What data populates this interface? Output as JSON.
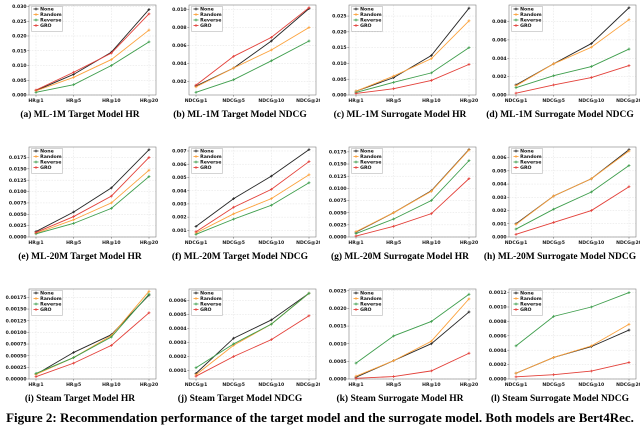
{
  "figure": {
    "caption": "Figure 2: Recommendation performance of the target model and the surrogate model. Both models are Bert4Rec."
  },
  "legend": [
    "None",
    "Random",
    "Reverse",
    "GRO"
  ],
  "colors": {
    "None": "#262626",
    "Random": "#fca23c",
    "Reverse": "#3f9e4d",
    "GRO": "#e3413a"
  },
  "chart_data": [
    {
      "type": "line",
      "title": "(a) ML-1M Target Model HR",
      "categories": [
        "HR@1",
        "HR@5",
        "HR@10",
        "HR@20"
      ],
      "ylim": [
        0,
        0.0305
      ],
      "ydecimals": 3,
      "yticks": [
        0.0,
        0.005,
        0.01,
        0.015,
        0.02,
        0.025,
        0.03
      ],
      "series": [
        {
          "name": "None",
          "values": [
            0.0015,
            0.007,
            0.0145,
            0.029
          ]
        },
        {
          "name": "Random",
          "values": [
            0.0014,
            0.006,
            0.012,
            0.022
          ]
        },
        {
          "name": "Reverse",
          "values": [
            0.0009,
            0.0035,
            0.01,
            0.018
          ]
        },
        {
          "name": "GRO",
          "values": [
            0.0017,
            0.0077,
            0.0142,
            0.0275
          ]
        }
      ]
    },
    {
      "type": "line",
      "title": "(b) ML-1M Target Model NDCG",
      "categories": [
        "NDCG@1",
        "NDCG@5",
        "NDCG@10",
        "NDCG@20"
      ],
      "ylim": [
        0.0005,
        0.0105
      ],
      "ydecimals": 3,
      "yticks": [
        0.002,
        0.004,
        0.006,
        0.008,
        0.01
      ],
      "series": [
        {
          "name": "None",
          "values": [
            0.0015,
            0.0035,
            0.0065,
            0.0101
          ]
        },
        {
          "name": "Random",
          "values": [
            0.0014,
            0.0035,
            0.0055,
            0.008
          ]
        },
        {
          "name": "Reverse",
          "values": [
            0.0008,
            0.0022,
            0.0043,
            0.0065
          ]
        },
        {
          "name": "GRO",
          "values": [
            0.0016,
            0.0048,
            0.0069,
            0.0102
          ]
        }
      ]
    },
    {
      "type": "line",
      "title": "(c) ML-1M Surrogate Model HR",
      "categories": [
        "HR@1",
        "HR@5",
        "HR@10",
        "HR@20"
      ],
      "ylim": [
        0,
        0.0285
      ],
      "ydecimals": 3,
      "yticks": [
        0.0,
        0.005,
        0.01,
        0.015,
        0.02,
        0.025
      ],
      "series": [
        {
          "name": "None",
          "values": [
            0.0012,
            0.0055,
            0.0125,
            0.0275
          ]
        },
        {
          "name": "Random",
          "values": [
            0.0012,
            0.006,
            0.0115,
            0.0235
          ]
        },
        {
          "name": "Reverse",
          "values": [
            0.0008,
            0.004,
            0.007,
            0.015
          ]
        },
        {
          "name": "GRO",
          "values": [
            0.0005,
            0.002,
            0.0046,
            0.0097
          ]
        }
      ]
    },
    {
      "type": "line",
      "title": "(d) ML-1M Surrogate Model NDCG",
      "categories": [
        "NDCG@1",
        "NDCG@5",
        "NDCG@10",
        "NDCG@20"
      ],
      "ylim": [
        0,
        0.0098
      ],
      "ydecimals": 3,
      "yticks": [
        0.0,
        0.002,
        0.004,
        0.006,
        0.008
      ],
      "series": [
        {
          "name": "None",
          "values": [
            0.0011,
            0.0034,
            0.0056,
            0.0095
          ]
        },
        {
          "name": "Random",
          "values": [
            0.001,
            0.0034,
            0.0052,
            0.0082
          ]
        },
        {
          "name": "Reverse",
          "values": [
            0.0008,
            0.0021,
            0.0031,
            0.005
          ]
        },
        {
          "name": "GRO",
          "values": [
            0.0002,
            0.0011,
            0.0019,
            0.0032
          ]
        }
      ]
    },
    {
      "type": "line",
      "title": "(e) ML-20M Target Model HR",
      "categories": [
        "HR@1",
        "HR@5",
        "HR@10",
        "HR@20"
      ],
      "ylim": [
        0,
        0.0198
      ],
      "ydecimals": 4,
      "yticks": [
        0.0,
        0.0025,
        0.005,
        0.0075,
        0.01,
        0.0125,
        0.015,
        0.0175,
        0.02
      ],
      "series": [
        {
          "name": "None",
          "values": [
            0.0012,
            0.0055,
            0.0108,
            0.0192
          ]
        },
        {
          "name": "Random",
          "values": [
            0.0008,
            0.0038,
            0.0075,
            0.0147
          ]
        },
        {
          "name": "Reverse",
          "values": [
            0.0007,
            0.003,
            0.0063,
            0.0133
          ]
        },
        {
          "name": "GRO",
          "values": [
            0.001,
            0.0045,
            0.009,
            0.0175
          ]
        }
      ]
    },
    {
      "type": "line",
      "title": "(f) ML-20M Target Model NDCG",
      "categories": [
        "NDCG@1",
        "NDCG@5",
        "NDCG@10",
        "NDCG@20"
      ],
      "ylim": [
        0.0005,
        0.0073
      ],
      "ydecimals": 3,
      "yticks": [
        0.001,
        0.002,
        0.003,
        0.004,
        0.005,
        0.006,
        0.007
      ],
      "series": [
        {
          "name": "None",
          "values": [
            0.0013,
            0.0034,
            0.0051,
            0.0071
          ]
        },
        {
          "name": "Random",
          "values": [
            0.0008,
            0.00225,
            0.0034,
            0.0052
          ]
        },
        {
          "name": "Reverse",
          "values": [
            0.0007,
            0.00185,
            0.0029,
            0.0046
          ]
        },
        {
          "name": "GRO",
          "values": [
            0.0009,
            0.00275,
            0.0041,
            0.0062
          ]
        }
      ]
    },
    {
      "type": "line",
      "title": "(g) ML-20M Surrogate Model HR",
      "categories": [
        "HR@1",
        "HR@5",
        "HR@10",
        "HR@20"
      ],
      "ylim": [
        0,
        0.0185
      ],
      "ydecimals": 4,
      "yticks": [
        0.0,
        0.0025,
        0.005,
        0.0075,
        0.01,
        0.0125,
        0.015,
        0.0175
      ],
      "series": [
        {
          "name": "None",
          "values": [
            0.001,
            0.005,
            0.0095,
            0.018
          ]
        },
        {
          "name": "Random",
          "values": [
            0.0011,
            0.005,
            0.0094,
            0.0179
          ]
        },
        {
          "name": "Reverse",
          "values": [
            0.0007,
            0.0037,
            0.0075,
            0.0157
          ]
        },
        {
          "name": "GRO",
          "values": [
            0.0002,
            0.0022,
            0.0048,
            0.012
          ]
        }
      ]
    },
    {
      "type": "line",
      "title": "(h) ML-20M Surrogate Model NDCG",
      "categories": [
        "NDCG@1",
        "NDCG@5",
        "NDCG@10",
        "NDCG@20"
      ],
      "ylim": [
        0,
        0.0068
      ],
      "ydecimals": 3,
      "yticks": [
        0.0,
        0.001,
        0.002,
        0.003,
        0.004,
        0.005,
        0.006
      ],
      "series": [
        {
          "name": "None",
          "values": [
            0.001,
            0.0031,
            0.0044,
            0.0066
          ]
        },
        {
          "name": "Random",
          "values": [
            0.00095,
            0.0031,
            0.0044,
            0.0065
          ]
        },
        {
          "name": "Reverse",
          "values": [
            0.0006,
            0.0021,
            0.0034,
            0.0054
          ]
        },
        {
          "name": "GRO",
          "values": [
            0.0002,
            0.0011,
            0.002,
            0.0038
          ]
        }
      ]
    },
    {
      "type": "line",
      "title": "(i) Steam Target Model HR",
      "categories": [
        "HR@1",
        "HR@5",
        "HR@10",
        "HR@20"
      ],
      "ylim": [
        0,
        0.00193
      ],
      "ydecimals": 5,
      "yticks": [
        0.0,
        0.00025,
        0.0005,
        0.00075,
        0.001,
        0.00125,
        0.0015,
        0.00175
      ],
      "series": [
        {
          "name": "None",
          "values": [
            0.0001,
            0.00057,
            0.00095,
            0.0018
          ]
        },
        {
          "name": "Random",
          "values": [
            0.0001,
            0.00046,
            0.00093,
            0.00188
          ]
        },
        {
          "name": "Reverse",
          "values": [
            0.00012,
            0.00046,
            0.0009,
            0.00182
          ]
        },
        {
          "name": "GRO",
          "values": [
            5e-05,
            0.00034,
            0.00072,
            0.00142
          ]
        }
      ]
    },
    {
      "type": "line",
      "title": "(j) Steam Target Model NDCG",
      "categories": [
        "NDCG@1",
        "NDCG@5",
        "NDCG@10",
        "NDCG@20"
      ],
      "ylim": [
        4e-05,
        0.00068
      ],
      "ydecimals": 4,
      "yticks": [
        0.0001,
        0.0002,
        0.0003,
        0.0004,
        0.0005,
        0.0006
      ],
      "series": [
        {
          "name": "None",
          "values": [
            8e-05,
            0.00033,
            0.00046,
            0.00065
          ]
        },
        {
          "name": "Random",
          "values": [
            7e-05,
            0.00028,
            0.00043,
            0.00065
          ]
        },
        {
          "name": "Reverse",
          "values": [
            0.00012,
            0.00029,
            0.00043,
            0.00065
          ]
        },
        {
          "name": "GRO",
          "values": [
            6e-05,
            0.0002,
            0.00032,
            0.00049
          ]
        }
      ]
    },
    {
      "type": "line",
      "title": "(k) Steam Surrogate Model HR",
      "categories": [
        "HR@1",
        "HR@5",
        "HR@10",
        "HR@20"
      ],
      "ylim": [
        0,
        0.00255
      ],
      "ydecimals": 4,
      "yticks": [
        0.0,
        0.0005,
        0.001,
        0.0015,
        0.002,
        0.0025
      ],
      "series": [
        {
          "name": "None",
          "values": [
            5e-05,
            0.00052,
            0.001,
            0.0019
          ]
        },
        {
          "name": "Random",
          "values": [
            8e-05,
            0.00052,
            0.00107,
            0.00227
          ]
        },
        {
          "name": "Reverse",
          "values": [
            0.00045,
            0.00122,
            0.00163,
            0.0024
          ]
        },
        {
          "name": "GRO",
          "values": [
            2e-05,
            7e-05,
            0.00023,
            0.00073
          ]
        }
      ]
    },
    {
      "type": "line",
      "title": "(l) Steam Surrogate Model NDCG",
      "categories": [
        "NDCG@1",
        "NDCG@5",
        "NDCG@10",
        "NDCG@20"
      ],
      "ylim": [
        0,
        0.00125
      ],
      "ydecimals": 4,
      "yticks": [
        0.0,
        0.0002,
        0.0004,
        0.0006,
        0.0008,
        0.001,
        0.0012
      ],
      "series": [
        {
          "name": "None",
          "values": [
            8e-05,
            0.0003,
            0.00045,
            0.00068
          ]
        },
        {
          "name": "Random",
          "values": [
            8e-05,
            0.0003,
            0.00046,
            0.00076
          ]
        },
        {
          "name": "Reverse",
          "values": [
            0.00046,
            0.00087,
            0.001,
            0.0012
          ]
        },
        {
          "name": "GRO",
          "values": [
            3e-05,
            6e-05,
            0.00011,
            0.00023
          ]
        }
      ]
    }
  ]
}
